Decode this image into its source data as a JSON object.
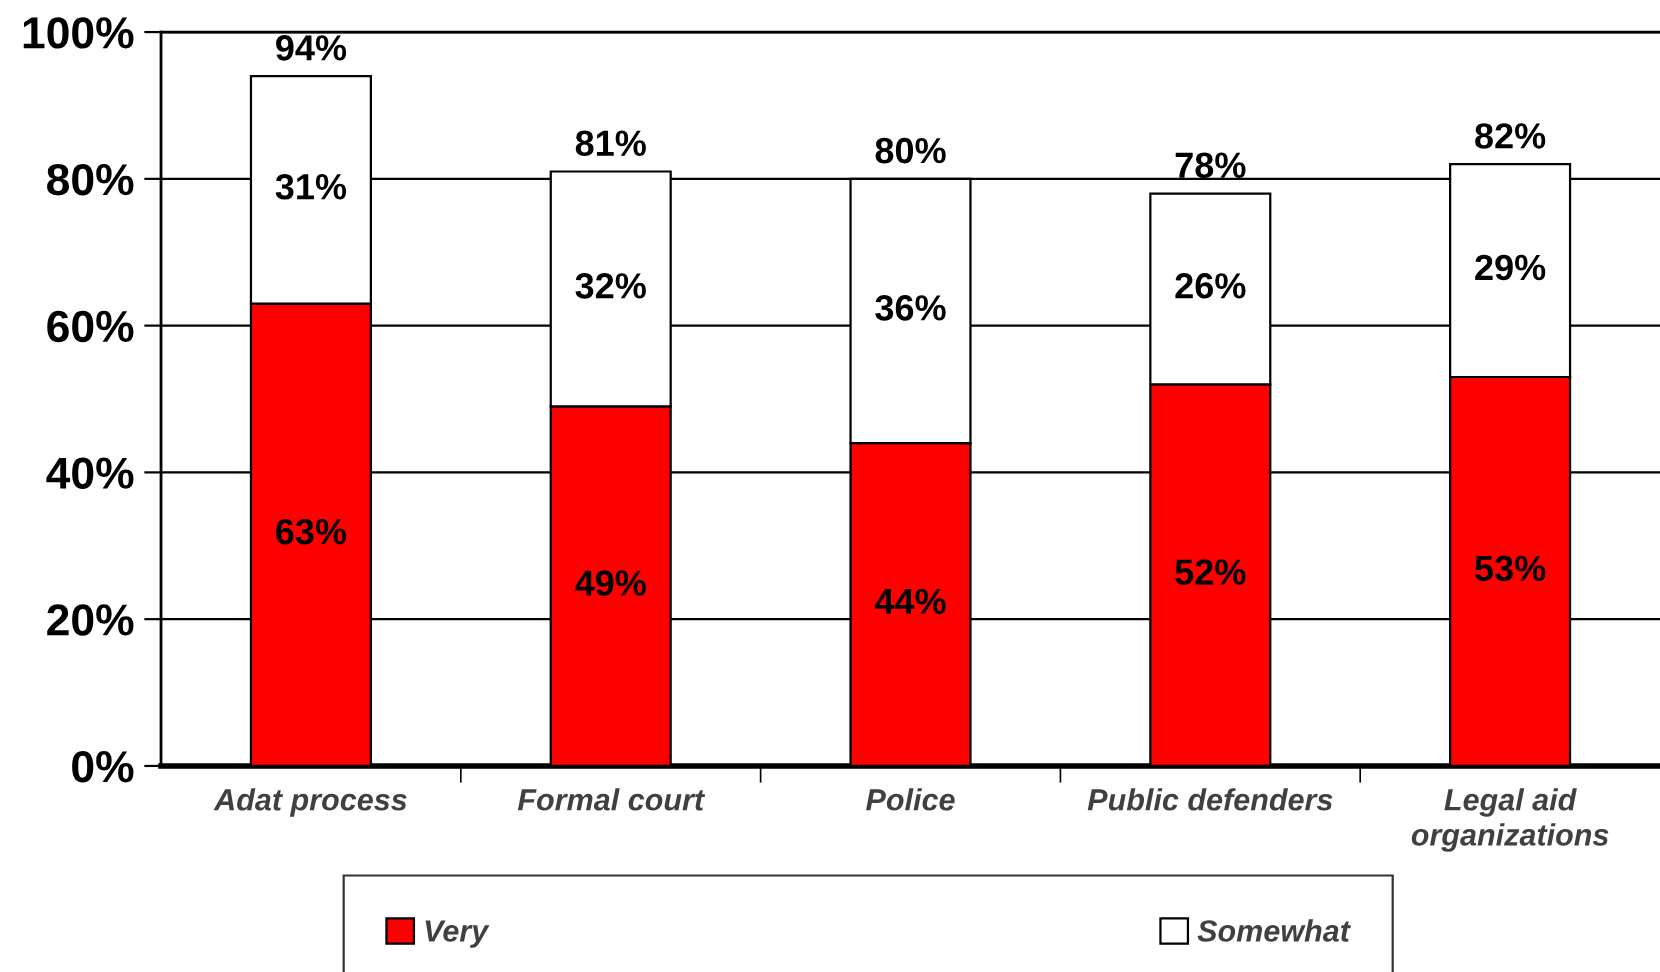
{
  "chart_data": {
    "type": "bar",
    "stacked": true,
    "categories": [
      "Adat process",
      "Formal court",
      "Police",
      "Public defenders",
      "Legal aid\norganizations"
    ],
    "series": [
      {
        "name": "Very",
        "color": "#ff0000",
        "values": [
          63,
          49,
          44,
          52,
          53
        ],
        "value_labels": [
          "63%",
          "49%",
          "44%",
          "52%",
          "53%"
        ]
      },
      {
        "name": "Somewhat",
        "color": "#ffffff",
        "values": [
          31,
          32,
          36,
          26,
          29
        ],
        "value_labels": [
          "31%",
          "32%",
          "36%",
          "26%",
          "29%"
        ]
      }
    ],
    "totals": [
      "94%",
      "81%",
      "80%",
      "78%",
      "82%"
    ],
    "ylim": [
      0,
      100
    ],
    "yticks": [
      {
        "value": 0,
        "label": "0%"
      },
      {
        "value": 20,
        "label": "20%"
      },
      {
        "value": 40,
        "label": "40%"
      },
      {
        "value": 60,
        "label": "60%"
      },
      {
        "value": 80,
        "label": "80%"
      },
      {
        "value": 100,
        "label": "100%"
      }
    ],
    "grid": "y",
    "legend": "bottom"
  }
}
